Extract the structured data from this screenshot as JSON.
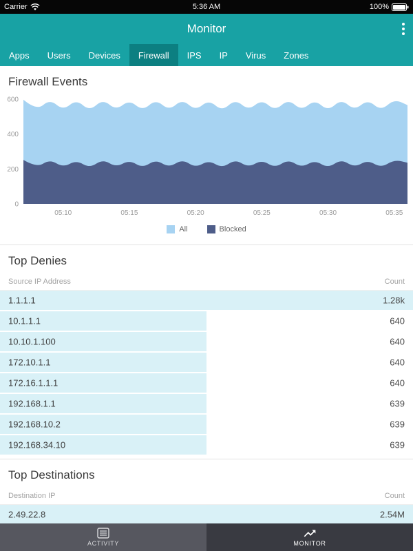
{
  "status_bar": {
    "carrier": "Carrier",
    "time": "5:36 AM",
    "battery": "100%"
  },
  "nav": {
    "title": "Monitor"
  },
  "tabs": {
    "items": [
      "Apps",
      "Users",
      "Devices",
      "Firewall",
      "IPS",
      "IP",
      "Virus",
      "Zones"
    ],
    "selected": "Firewall"
  },
  "firewall_events": {
    "title": "Firewall Events"
  },
  "chart_data": {
    "type": "area",
    "title": "Firewall Events",
    "ylim": [
      0,
      600
    ],
    "yticks": [
      0,
      200,
      400,
      600
    ],
    "x_ticks": [
      "05:10",
      "05:15",
      "05:20",
      "05:25",
      "05:30",
      "05:35"
    ],
    "tick_indices": [
      3,
      8,
      13,
      18,
      23,
      28
    ],
    "legend_position": "bottom",
    "series": [
      {
        "name": "All",
        "color": "#a7d3f2",
        "values": [
          597,
          534,
          600,
          536,
          598,
          532,
          600,
          537,
          596,
          533,
          599,
          535,
          600,
          534,
          597,
          531,
          600,
          536,
          598,
          533,
          600,
          535,
          597,
          532,
          600,
          536,
          598,
          534,
          600,
          566
        ]
      },
      {
        "name": "Blocked",
        "color": "#4e5d89",
        "values": [
          252,
          207,
          255,
          209,
          250,
          205,
          256,
          210,
          251,
          206,
          254,
          208,
          256,
          207,
          250,
          205,
          255,
          209,
          252,
          206,
          255,
          208,
          250,
          205,
          256,
          209,
          251,
          207,
          253,
          236
        ]
      }
    ]
  },
  "top_denies": {
    "title": "Top Denies",
    "columns": [
      "Source IP Address",
      "Count"
    ],
    "max_value": 1280,
    "rows": [
      {
        "ip": "1.1.1.1",
        "count": "1.28k",
        "value": 1280
      },
      {
        "ip": "10.1.1.1",
        "count": "640",
        "value": 640
      },
      {
        "ip": "10.10.1.100",
        "count": "640",
        "value": 640
      },
      {
        "ip": "172.10.1.1",
        "count": "640",
        "value": 640
      },
      {
        "ip": "172.16.1.1.1",
        "count": "640",
        "value": 640
      },
      {
        "ip": "192.168.1.1",
        "count": "639",
        "value": 639
      },
      {
        "ip": "192.168.10.2",
        "count": "639",
        "value": 639
      },
      {
        "ip": "192.168.34.10",
        "count": "639",
        "value": 639
      }
    ]
  },
  "top_destinations": {
    "title": "Top Destinations",
    "columns": [
      "Destination IP",
      "Count"
    ],
    "max_value": 2540000,
    "rows": [
      {
        "ip": "2.49.22.8",
        "count": "2.54M",
        "value": 2540000
      }
    ]
  },
  "bottom_bar": {
    "items": [
      {
        "label": "ACTIVITY",
        "icon": "activity-list-icon",
        "selected": false
      },
      {
        "label": "MONITOR",
        "icon": "monitor-trend-icon",
        "selected": true
      }
    ]
  }
}
